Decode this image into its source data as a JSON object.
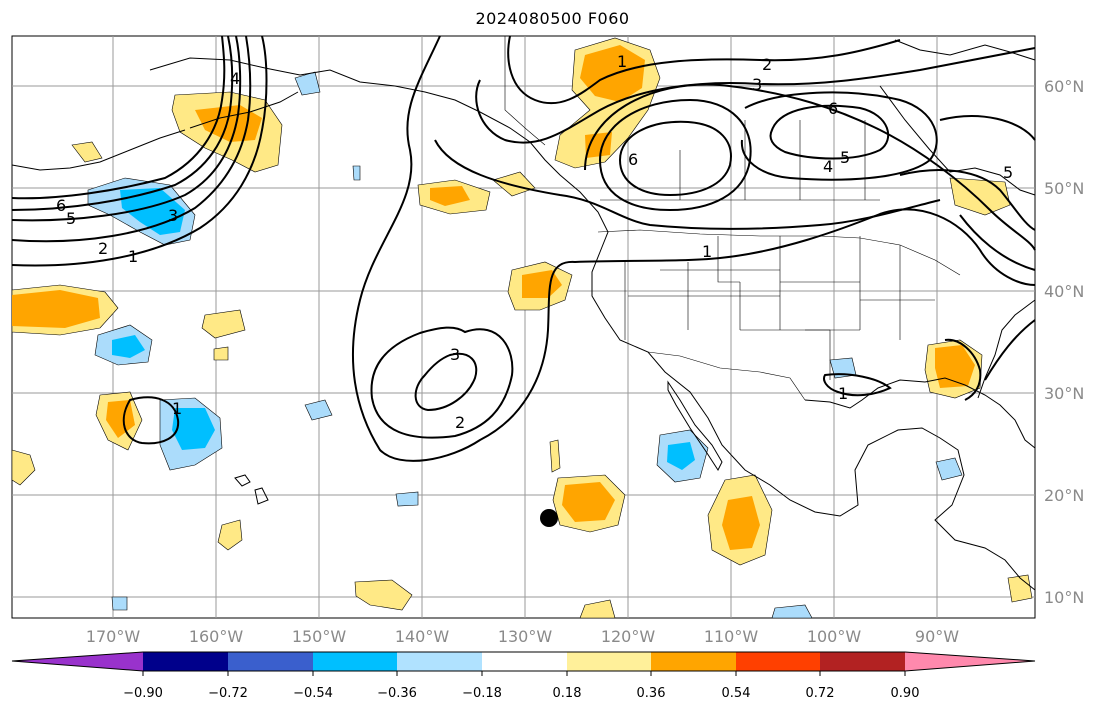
{
  "title": "2024080500 F060",
  "map": {
    "lon_labels": [
      "170°W",
      "160°W",
      "150°W",
      "140°W",
      "130°W",
      "120°W",
      "110°W",
      "100°W",
      "90°W"
    ],
    "lat_labels": [
      "60°N",
      "50°N",
      "40°N",
      "30°N",
      "20°N",
      "10°N"
    ],
    "contour_labels": [
      "6",
      "5",
      "4",
      "3",
      "2",
      "1",
      "1",
      "2",
      "3",
      "6",
      "6",
      "5",
      "4",
      "5",
      "1",
      "2",
      "3",
      "1",
      "1"
    ],
    "fill_colors": {
      "weak_pos": "#ffe986",
      "mid_pos": "#ffa500",
      "weak_neg": "#abdcfb",
      "mid_neg": "#00bfff"
    }
  },
  "colorbar": {
    "colors": [
      "#9932cc",
      "#00008b",
      "#3a5fcd",
      "#00bfff",
      "#b0e2ff",
      "#ffffff",
      "#fff09a",
      "#ffa500",
      "#ff4000",
      "#b22222",
      "#ff89ad"
    ],
    "tick_labels": [
      "−0.90",
      "−0.72",
      "−0.54",
      "−0.36",
      "−0.18",
      "0.18",
      "0.36",
      "0.54",
      "0.72",
      "0.90"
    ]
  }
}
